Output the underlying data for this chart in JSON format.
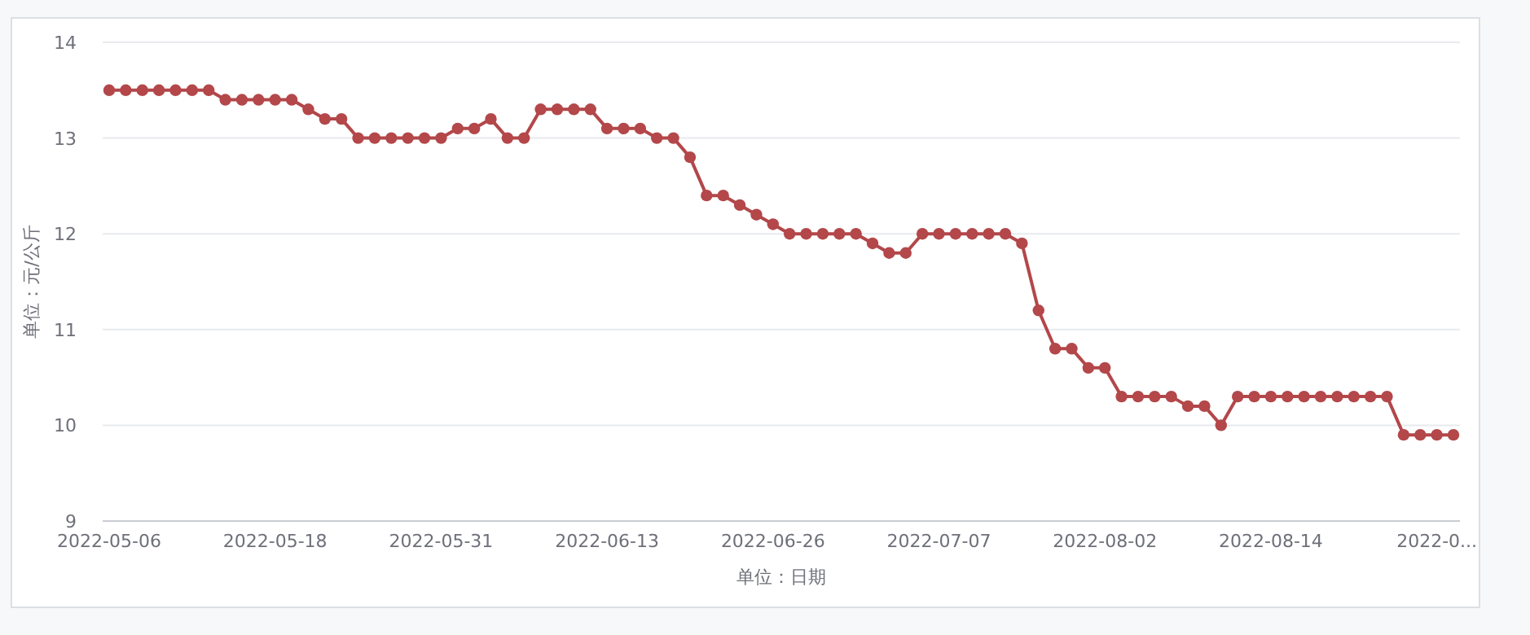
{
  "chart_data": {
    "type": "line",
    "categories": [
      "2022-05-06",
      null,
      null,
      null,
      null,
      null,
      null,
      null,
      null,
      null,
      "2022-05-18",
      null,
      null,
      null,
      null,
      null,
      null,
      null,
      null,
      null,
      "2022-05-31",
      null,
      null,
      null,
      null,
      null,
      null,
      null,
      null,
      null,
      "2022-06-13",
      null,
      null,
      null,
      null,
      null,
      null,
      null,
      null,
      null,
      "2022-06-26",
      null,
      null,
      null,
      null,
      null,
      null,
      null,
      null,
      null,
      "2022-07-07",
      null,
      null,
      null,
      null,
      null,
      null,
      null,
      null,
      null,
      "2022-08-02",
      null,
      null,
      null,
      null,
      null,
      null,
      null,
      null,
      null,
      "2022-08-14",
      null,
      null,
      null,
      null,
      null,
      null,
      null,
      null,
      null,
      "2022-0...",
      null
    ],
    "series": [
      {
        "color": "#b3474a",
        "values": [
          13.5,
          13.5,
          13.5,
          13.5,
          13.5,
          13.5,
          13.5,
          13.4,
          13.4,
          13.4,
          13.4,
          13.4,
          13.3,
          13.2,
          13.2,
          13.0,
          13.0,
          13.0,
          13.0,
          13.0,
          13.0,
          13.1,
          13.1,
          13.2,
          13.0,
          13.0,
          13.3,
          13.3,
          13.3,
          13.3,
          13.1,
          13.1,
          13.1,
          13.0,
          13.0,
          12.8,
          12.4,
          12.4,
          12.3,
          12.2,
          12.1,
          12.0,
          12.0,
          12.0,
          12.0,
          12.0,
          11.9,
          11.8,
          11.8,
          12.0,
          12.0,
          12.0,
          12.0,
          12.0,
          12.0,
          11.9,
          11.2,
          10.8,
          10.8,
          10.6,
          10.6,
          10.3,
          10.3,
          10.3,
          10.3,
          10.2,
          10.2,
          10.0,
          10.3,
          10.3,
          10.3,
          10.3,
          10.3,
          10.3,
          10.3,
          10.3,
          10.3,
          10.3,
          9.9,
          9.9,
          9.9,
          9.9
        ]
      }
    ],
    "ylim": [
      9,
      14
    ],
    "yticks": [
      9,
      10,
      11,
      12,
      13,
      14
    ],
    "xlabel": "单位：日期",
    "ylabel": "单位：元/公斤",
    "grid": "y",
    "marker": "circle",
    "line_style": "solid"
  }
}
